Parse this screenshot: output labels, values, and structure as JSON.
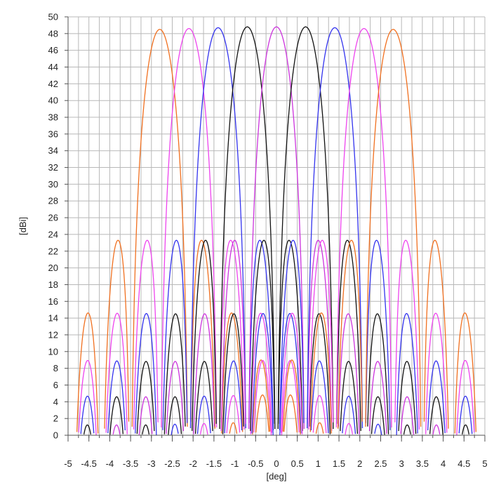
{
  "chart_data": {
    "type": "line",
    "xlabel": "[deg]",
    "ylabel": "[dBi]",
    "xlim": [
      -5,
      5
    ],
    "ylim": [
      0,
      50
    ],
    "grid": true,
    "x_minor_step": 0.25,
    "y_minor_step": 2,
    "x_ticks": [
      -5,
      -4.5,
      -4,
      -3.5,
      -3,
      -2.5,
      -2,
      -1.5,
      -1,
      -0.5,
      0,
      0.5,
      1,
      1.5,
      2,
      2.5,
      3,
      3.5,
      4,
      4.5,
      5
    ],
    "x_tick_labels": [
      "-5",
      "-4.5",
      "-4",
      "-3.5",
      "-3",
      "-2.5",
      "-2",
      "-1.5",
      "-1",
      "-0.5",
      "0",
      "0.5",
      "1",
      "1.5",
      "2",
      "2.5",
      "3",
      "3.5",
      "4",
      "4.5",
      "5"
    ],
    "y_ticks": [
      0,
      2,
      4,
      6,
      8,
      10,
      12,
      14,
      16,
      18,
      20,
      22,
      24,
      26,
      28,
      30,
      32,
      34,
      36,
      38,
      40,
      42,
      44,
      46,
      48,
      50
    ],
    "y_tick_labels": [
      "0",
      "2",
      "4",
      "6",
      "8",
      "10",
      "12",
      "14",
      "16",
      "18",
      "20",
      "22",
      "24",
      "26",
      "28",
      "30",
      "32",
      "34",
      "36",
      "38",
      "40",
      "42",
      "44",
      "46",
      "48",
      "50"
    ],
    "beam_model": {
      "first_null_offset_deg": 0.7,
      "sidelobe_level_db": 23.3,
      "floor_db": 0
    },
    "series": [
      {
        "color": "#f07020",
        "peak_x": -2.8,
        "peak_y": 48.5
      },
      {
        "color": "#ee44ee",
        "peak_x": -2.1,
        "peak_y": 48.6
      },
      {
        "color": "#3333ee",
        "peak_x": -1.4,
        "peak_y": 48.7
      },
      {
        "color": "#111111",
        "peak_x": -0.7,
        "peak_y": 48.8
      },
      {
        "color": "#cc33dd",
        "peak_x": 0.0,
        "peak_y": 48.8
      },
      {
        "color": "#111111",
        "peak_x": 0.7,
        "peak_y": 48.8
      },
      {
        "color": "#3333ee",
        "peak_x": 1.4,
        "peak_y": 48.7
      },
      {
        "color": "#ee44ee",
        "peak_x": 2.1,
        "peak_y": 48.6
      },
      {
        "color": "#f07020",
        "peak_x": 2.8,
        "peak_y": 48.5
      }
    ]
  }
}
